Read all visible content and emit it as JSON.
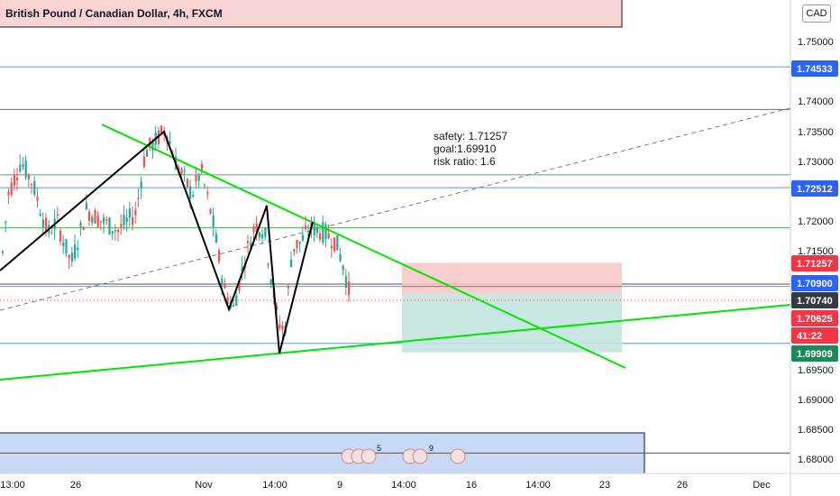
{
  "header": {
    "title": "British Pound / Canadian Dollar, 4h, FXCM",
    "currency": "CAD"
  },
  "annotation": {
    "line1": "safety: 1.71257",
    "line2": "goal:1.69910",
    "line3": "risk ratio: 1.6"
  },
  "colors": {
    "up": "#26a69a",
    "down": "#ef5350",
    "trendline_green": "#00e600",
    "zigzag": "#000000",
    "hline_blue": "#5b9bd5",
    "hline_red": "#e53935",
    "hline_green": "#4caf50",
    "tag_blue": "#2962ff",
    "tag_red": "#f23645",
    "tag_green": "#1b8a5a",
    "tag_dark": "#363a45",
    "risk_zone": "#f7c6c6",
    "reward_zone": "#c4e6e0",
    "event_bar": "#c9d9f5"
  },
  "chart_data": {
    "type": "candlestick",
    "title": "British Pound / Canadian Dollar, 4h, FXCM",
    "ylim": [
      1.6775,
      1.7585
    ],
    "y_ticks": [
      "1.75000",
      "1.74000",
      "1.73500",
      "1.73000",
      "1.72000",
      "1.71500",
      "1.69500",
      "1.69000",
      "1.68500",
      "1.68000"
    ],
    "x_ticks": [
      "13:00",
      "26",
      "Nov",
      "14:00",
      "9",
      "14:00",
      "16",
      "14:00",
      "23",
      "26",
      "Dec"
    ],
    "price_tags": [
      {
        "label": "1.74533",
        "color": "blue"
      },
      {
        "label": "1.72512",
        "color": "blue"
      },
      {
        "label": "1.71257",
        "color": "red"
      },
      {
        "label": "1.70900",
        "color": "blue"
      },
      {
        "label": "1.70740",
        "color": "dark"
      },
      {
        "label": "1.70625",
        "color": "red"
      },
      {
        "label": "41:22",
        "color": "red"
      },
      {
        "label": "1.69909",
        "color": "green"
      }
    ],
    "horizontal_levels": [
      {
        "price": 1.7585,
        "color": "black"
      },
      {
        "price": 1.74533,
        "color": "blue"
      },
      {
        "price": 1.7382,
        "color": "red"
      },
      {
        "price": 1.72728,
        "color": "green"
      },
      {
        "price": 1.72512,
        "color": "blue"
      },
      {
        "price": 1.71842,
        "color": "green"
      },
      {
        "price": 1.709,
        "color": "black"
      },
      {
        "price": 1.7086,
        "color": "blue"
      },
      {
        "price": 1.69909,
        "color": "blue"
      },
      {
        "price": 1.68075,
        "color": "black"
      }
    ],
    "position": {
      "entry": 1.7074,
      "stop": 1.71257,
      "target": 1.6991
    },
    "zigzag": [
      {
        "x": "start",
        "y": 1.7105
      },
      {
        "x": "peak",
        "y": 1.735
      },
      {
        "x": "trough",
        "y": 1.7046
      },
      {
        "x": "peak",
        "y": 1.7222
      },
      {
        "x": "trough",
        "y": 1.6988
      },
      {
        "x": "peak",
        "y": 1.7194
      }
    ],
    "event_markers": [
      "5",
      "9"
    ]
  }
}
